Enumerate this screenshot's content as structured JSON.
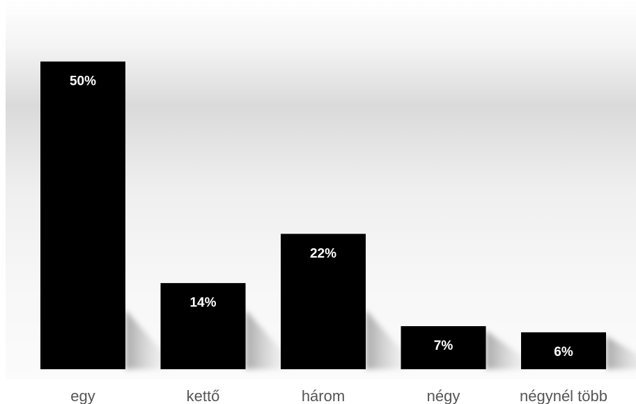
{
  "chart_data": {
    "type": "bar",
    "categories": [
      "egy",
      "kettő",
      "három",
      "négy",
      "négynél több"
    ],
    "values": [
      50,
      14,
      22,
      7,
      6
    ],
    "value_labels": [
      "50%",
      "14%",
      "22%",
      "7%",
      "6%"
    ],
    "unit": "%",
    "ylim": [
      0,
      60
    ],
    "grid": false,
    "legend": "none",
    "bar_color": "#000000",
    "label_color": "#ffffff",
    "category_label_color": "#555555"
  }
}
